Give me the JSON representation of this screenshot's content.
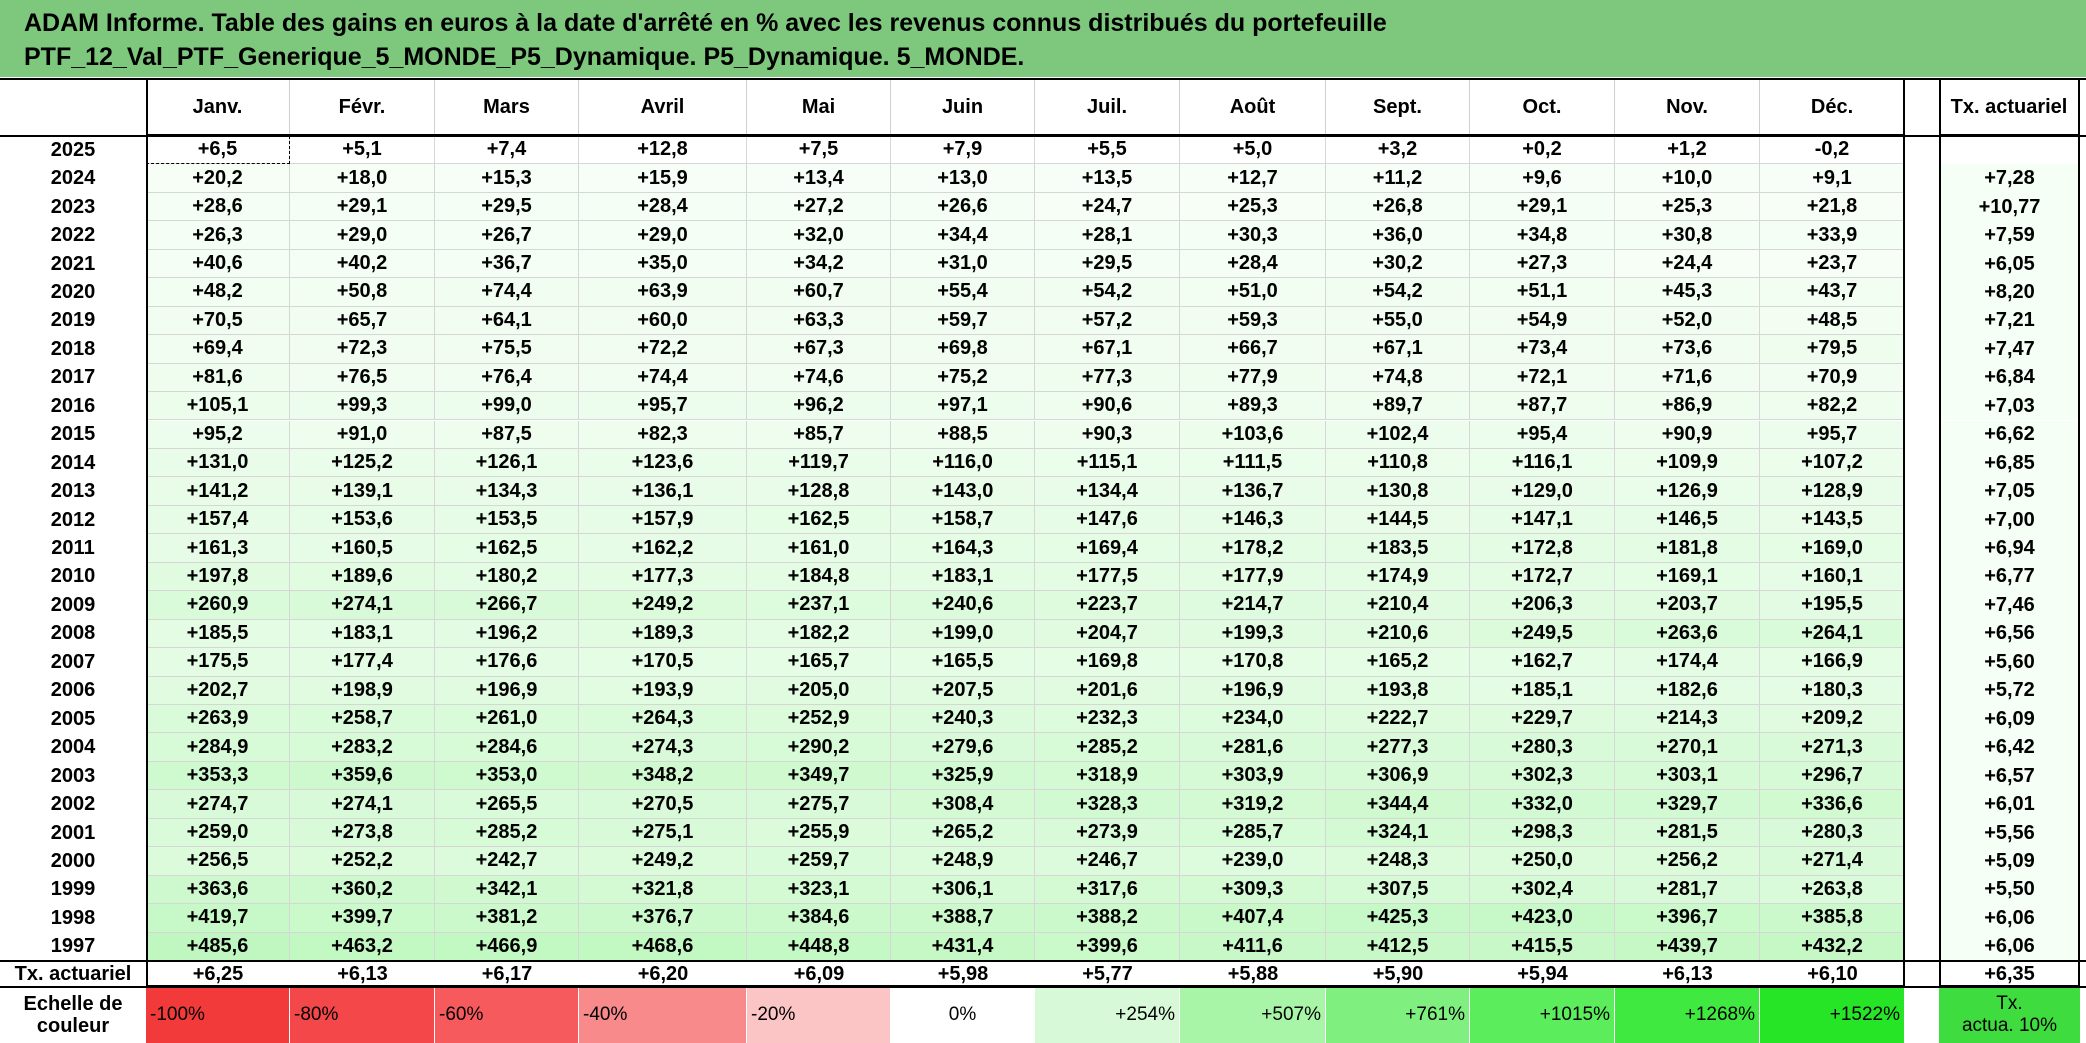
{
  "title_lines": [
    "ADAM Informe. Table des gains en euros à la date d'arrêté en % avec les revenus connus distribués du portefeuille",
    "PTF_12_Val_PTF_Generique_5_MONDE_P5_Dynamique. P5_Dynamique. 5_MONDE."
  ],
  "months": [
    "Janv.",
    "Févr.",
    "Mars",
    "Avril",
    "Mai",
    "Juin",
    "Juil.",
    "Août",
    "Sept.",
    "Oct.",
    "Nov.",
    "Déc."
  ],
  "tx_header": "Tx. actuariel",
  "rows": [
    {
      "year": "2025",
      "values": [
        "+6,5",
        "+5,1",
        "+7,4",
        "+12,8",
        "+7,5",
        "+7,9",
        "+5,5",
        "+5,0",
        "+3,2",
        "+0,2",
        "+1,2",
        "-0,2"
      ],
      "tx": ""
    },
    {
      "year": "2024",
      "values": [
        "+20,2",
        "+18,0",
        "+15,3",
        "+15,9",
        "+13,4",
        "+13,0",
        "+13,5",
        "+12,7",
        "+11,2",
        "+9,6",
        "+10,0",
        "+9,1"
      ],
      "tx": "+7,28"
    },
    {
      "year": "2023",
      "values": [
        "+28,6",
        "+29,1",
        "+29,5",
        "+28,4",
        "+27,2",
        "+26,6",
        "+24,7",
        "+25,3",
        "+26,8",
        "+29,1",
        "+25,3",
        "+21,8"
      ],
      "tx": "+10,77"
    },
    {
      "year": "2022",
      "values": [
        "+26,3",
        "+29,0",
        "+26,7",
        "+29,0",
        "+32,0",
        "+34,4",
        "+28,1",
        "+30,3",
        "+36,0",
        "+34,8",
        "+30,8",
        "+33,9"
      ],
      "tx": "+7,59"
    },
    {
      "year": "2021",
      "values": [
        "+40,6",
        "+40,2",
        "+36,7",
        "+35,0",
        "+34,2",
        "+31,0",
        "+29,5",
        "+28,4",
        "+30,2",
        "+27,3",
        "+24,4",
        "+23,7"
      ],
      "tx": "+6,05"
    },
    {
      "year": "2020",
      "values": [
        "+48,2",
        "+50,8",
        "+74,4",
        "+63,9",
        "+60,7",
        "+55,4",
        "+54,2",
        "+51,0",
        "+54,2",
        "+51,1",
        "+45,3",
        "+43,7"
      ],
      "tx": "+8,20"
    },
    {
      "year": "2019",
      "values": [
        "+70,5",
        "+65,7",
        "+64,1",
        "+60,0",
        "+63,3",
        "+59,7",
        "+57,2",
        "+59,3",
        "+55,0",
        "+54,9",
        "+52,0",
        "+48,5"
      ],
      "tx": "+7,21"
    },
    {
      "year": "2018",
      "values": [
        "+69,4",
        "+72,3",
        "+75,5",
        "+72,2",
        "+67,3",
        "+69,8",
        "+67,1",
        "+66,7",
        "+67,1",
        "+73,4",
        "+73,6",
        "+79,5"
      ],
      "tx": "+7,47"
    },
    {
      "year": "2017",
      "values": [
        "+81,6",
        "+76,5",
        "+76,4",
        "+74,4",
        "+74,6",
        "+75,2",
        "+77,3",
        "+77,9",
        "+74,8",
        "+72,1",
        "+71,6",
        "+70,9"
      ],
      "tx": "+6,84"
    },
    {
      "year": "2016",
      "values": [
        "+105,1",
        "+99,3",
        "+99,0",
        "+95,7",
        "+96,2",
        "+97,1",
        "+90,6",
        "+89,3",
        "+89,7",
        "+87,7",
        "+86,9",
        "+82,2"
      ],
      "tx": "+7,03"
    },
    {
      "year": "2015",
      "values": [
        "+95,2",
        "+91,0",
        "+87,5",
        "+82,3",
        "+85,7",
        "+88,5",
        "+90,3",
        "+103,6",
        "+102,4",
        "+95,4",
        "+90,9",
        "+95,7"
      ],
      "tx": "+6,62"
    },
    {
      "year": "2014",
      "values": [
        "+131,0",
        "+125,2",
        "+126,1",
        "+123,6",
        "+119,7",
        "+116,0",
        "+115,1",
        "+111,5",
        "+110,8",
        "+116,1",
        "+109,9",
        "+107,2"
      ],
      "tx": "+6,85"
    },
    {
      "year": "2013",
      "values": [
        "+141,2",
        "+139,1",
        "+134,3",
        "+136,1",
        "+128,8",
        "+143,0",
        "+134,4",
        "+136,7",
        "+130,8",
        "+129,0",
        "+126,9",
        "+128,9"
      ],
      "tx": "+7,05"
    },
    {
      "year": "2012",
      "values": [
        "+157,4",
        "+153,6",
        "+153,5",
        "+157,9",
        "+162,5",
        "+158,7",
        "+147,6",
        "+146,3",
        "+144,5",
        "+147,1",
        "+146,5",
        "+143,5"
      ],
      "tx": "+7,00"
    },
    {
      "year": "2011",
      "values": [
        "+161,3",
        "+160,5",
        "+162,5",
        "+162,2",
        "+161,0",
        "+164,3",
        "+169,4",
        "+178,2",
        "+183,5",
        "+172,8",
        "+181,8",
        "+169,0"
      ],
      "tx": "+6,94"
    },
    {
      "year": "2010",
      "values": [
        "+197,8",
        "+189,6",
        "+180,2",
        "+177,3",
        "+184,8",
        "+183,1",
        "+177,5",
        "+177,9",
        "+174,9",
        "+172,7",
        "+169,1",
        "+160,1"
      ],
      "tx": "+6,77"
    },
    {
      "year": "2009",
      "values": [
        "+260,9",
        "+274,1",
        "+266,7",
        "+249,2",
        "+237,1",
        "+240,6",
        "+223,7",
        "+214,7",
        "+210,4",
        "+206,3",
        "+203,7",
        "+195,5"
      ],
      "tx": "+7,46"
    },
    {
      "year": "2008",
      "values": [
        "+185,5",
        "+183,1",
        "+196,2",
        "+189,3",
        "+182,2",
        "+199,0",
        "+204,7",
        "+199,3",
        "+210,6",
        "+249,5",
        "+263,6",
        "+264,1"
      ],
      "tx": "+6,56"
    },
    {
      "year": "2007",
      "values": [
        "+175,5",
        "+177,4",
        "+176,6",
        "+170,5",
        "+165,7",
        "+165,5",
        "+169,8",
        "+170,8",
        "+165,2",
        "+162,7",
        "+174,4",
        "+166,9"
      ],
      "tx": "+5,60"
    },
    {
      "year": "2006",
      "values": [
        "+202,7",
        "+198,9",
        "+196,9",
        "+193,9",
        "+205,0",
        "+207,5",
        "+201,6",
        "+196,9",
        "+193,8",
        "+185,1",
        "+182,6",
        "+180,3"
      ],
      "tx": "+5,72"
    },
    {
      "year": "2005",
      "values": [
        "+263,9",
        "+258,7",
        "+261,0",
        "+264,3",
        "+252,9",
        "+240,3",
        "+232,3",
        "+234,0",
        "+222,7",
        "+229,7",
        "+214,3",
        "+209,2"
      ],
      "tx": "+6,09"
    },
    {
      "year": "2004",
      "values": [
        "+284,9",
        "+283,2",
        "+284,6",
        "+274,3",
        "+290,2",
        "+279,6",
        "+285,2",
        "+281,6",
        "+277,3",
        "+280,3",
        "+270,1",
        "+271,3"
      ],
      "tx": "+6,42"
    },
    {
      "year": "2003",
      "values": [
        "+353,3",
        "+359,6",
        "+353,0",
        "+348,2",
        "+349,7",
        "+325,9",
        "+318,9",
        "+303,9",
        "+306,9",
        "+302,3",
        "+303,1",
        "+296,7"
      ],
      "tx": "+6,57"
    },
    {
      "year": "2002",
      "values": [
        "+274,7",
        "+274,1",
        "+265,5",
        "+270,5",
        "+275,7",
        "+308,4",
        "+328,3",
        "+319,2",
        "+344,4",
        "+332,0",
        "+329,7",
        "+336,6"
      ],
      "tx": "+6,01"
    },
    {
      "year": "2001",
      "values": [
        "+259,0",
        "+273,8",
        "+285,2",
        "+275,1",
        "+255,9",
        "+265,2",
        "+273,9",
        "+285,7",
        "+324,1",
        "+298,3",
        "+281,5",
        "+280,3"
      ],
      "tx": "+5,56"
    },
    {
      "year": "2000",
      "values": [
        "+256,5",
        "+252,2",
        "+242,7",
        "+249,2",
        "+259,7",
        "+248,9",
        "+246,7",
        "+239,0",
        "+248,3",
        "+250,0",
        "+256,2",
        "+271,4"
      ],
      "tx": "+5,09"
    },
    {
      "year": "1999",
      "values": [
        "+363,6",
        "+360,2",
        "+342,1",
        "+321,8",
        "+323,1",
        "+306,1",
        "+317,6",
        "+309,3",
        "+307,5",
        "+302,4",
        "+281,7",
        "+263,8"
      ],
      "tx": "+5,50"
    },
    {
      "year": "1998",
      "values": [
        "+419,7",
        "+399,7",
        "+381,2",
        "+376,7",
        "+384,6",
        "+388,7",
        "+388,2",
        "+407,4",
        "+425,3",
        "+423,0",
        "+396,7",
        "+385,8"
      ],
      "tx": "+6,06"
    },
    {
      "year": "1997",
      "values": [
        "+485,6",
        "+463,2",
        "+466,9",
        "+468,6",
        "+448,8",
        "+431,4",
        "+399,6",
        "+411,6",
        "+412,5",
        "+415,5",
        "+439,7",
        "+432,2"
      ],
      "tx": "+6,06"
    }
  ],
  "footer": {
    "label": "Tx. actuariel",
    "values": [
      "+6,25",
      "+6,13",
      "+6,17",
      "+6,20",
      "+6,09",
      "+5,98",
      "+5,77",
      "+5,88",
      "+5,90",
      "+5,94",
      "+6,13",
      "+6,10"
    ],
    "tx": "+6,35"
  },
  "scale": {
    "label_lines": [
      "Echelle de",
      "couleur"
    ],
    "items": [
      {
        "label": "-100%",
        "color": "#f23a3a",
        "align": "left"
      },
      {
        "label": "-80%",
        "color": "#f4474a",
        "align": "left"
      },
      {
        "label": "-60%",
        "color": "#f65a5d",
        "align": "left"
      },
      {
        "label": "-40%",
        "color": "#f88a8b",
        "align": "left"
      },
      {
        "label": "-20%",
        "color": "#fbc5c6",
        "align": "left"
      },
      {
        "label": "0%",
        "color": "#ffffff",
        "align": "center"
      },
      {
        "label": "+254%",
        "color": "#d8f9d8",
        "align": "right"
      },
      {
        "label": "+507%",
        "color": "#a8f5a8",
        "align": "right"
      },
      {
        "label": "+761%",
        "color": "#7ff07f",
        "align": "right"
      },
      {
        "label": "+1015%",
        "color": "#5ced5c",
        "align": "right"
      },
      {
        "label": "+1268%",
        "color": "#3fe93f",
        "align": "right"
      },
      {
        "label": "+1522%",
        "color": "#26e526",
        "align": "right"
      }
    ],
    "tx_lines": [
      "Tx.",
      "actua. 10%"
    ],
    "tx_color": "#3fdc3f"
  },
  "colors": {
    "header_bg": "#7ec87e",
    "gain_min": "#ffffff",
    "gain_max": "#26e526"
  }
}
